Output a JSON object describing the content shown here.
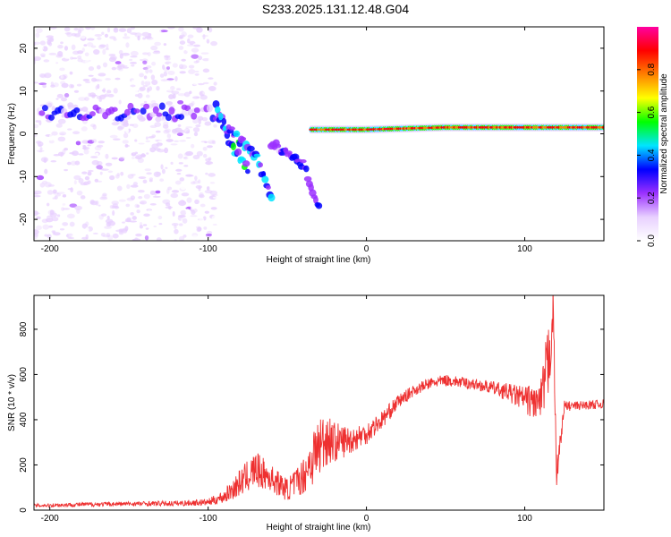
{
  "title": "S233.2025.131.12.48.G04",
  "chart_data": [
    {
      "type": "heatmap",
      "xlabel": "Height of straight line (km)",
      "ylabel": "Frequency (Hz)",
      "xlim": [
        -210,
        150
      ],
      "ylim": [
        -25,
        25
      ],
      "x_ticks": [
        -200,
        -100,
        0,
        100
      ],
      "y_ticks": [
        -20,
        -10,
        0,
        10,
        20
      ],
      "colorbar": {
        "label": "Normalized spectral amplitude",
        "range": [
          0,
          1
        ],
        "ticks": [
          "0.0",
          "0.2",
          "0.4",
          "0.6",
          "0.8"
        ],
        "colors": [
          "#ffffff",
          "#e8d0ff",
          "#9b30ff",
          "#0000ff",
          "#00e5ff",
          "#00ff00",
          "#ffff00",
          "#ff8000",
          "#ff0000",
          "#ff00a0"
        ]
      },
      "features": [
        {
          "desc": "diffuse speckle noise",
          "x_range": [
            -210,
            -95
          ],
          "y_range": [
            -25,
            25
          ],
          "amplitude": 0.1
        },
        {
          "desc": "band near 5 Hz",
          "x_range": [
            -205,
            -90
          ],
          "freq": 5,
          "amplitude": 0.25
        },
        {
          "desc": "descending branch A",
          "points": [
            [
              -95,
              6
            ],
            [
              -85,
              -3
            ],
            [
              -75,
              -8
            ]
          ],
          "amplitude": 0.35
        },
        {
          "desc": "descending branch B",
          "points": [
            [
              -90,
              2
            ],
            [
              -70,
              -5
            ],
            [
              -60,
              -15
            ]
          ],
          "amplitude": 0.35
        },
        {
          "desc": "descending branch C",
          "points": [
            [
              -60,
              -2
            ],
            [
              -40,
              -7
            ],
            [
              -30,
              -17
            ]
          ],
          "amplitude": 0.25
        },
        {
          "desc": "carrier line",
          "points": [
            [
              -35,
              1
            ],
            [
              0,
              1
            ],
            [
              50,
              1.5
            ],
            [
              100,
              1.5
            ],
            [
              150,
              1.5
            ]
          ],
          "amplitude": 0.9
        }
      ]
    },
    {
      "type": "line",
      "xlabel": "Height of straight line (km)",
      "ylabel": "SNR (10 * v/v)",
      "xlim": [
        -210,
        150
      ],
      "ylim": [
        0,
        950
      ],
      "x_ticks": [
        -200,
        -100,
        0,
        100
      ],
      "y_ticks": [
        0,
        200,
        400,
        600,
        800
      ],
      "color": "#ee3030",
      "series": [
        {
          "x": [
            -210,
            -180,
            -150,
            -120,
            -100,
            -90,
            -80,
            -70,
            -60,
            -50,
            -40,
            -35,
            -30,
            -25,
            -20,
            -10,
            0,
            10,
            20,
            30,
            40,
            50,
            60,
            70,
            80,
            90,
            100,
            110,
            115,
            118,
            120,
            125,
            130,
            140,
            150
          ],
          "y": [
            20,
            25,
            28,
            30,
            35,
            60,
            120,
            180,
            140,
            90,
            150,
            220,
            280,
            320,
            300,
            310,
            340,
            400,
            480,
            530,
            560,
            575,
            565,
            555,
            540,
            520,
            490,
            470,
            650,
            900,
            150,
            460,
            460,
            465,
            470
          ],
          "noise": [
            8,
            10,
            10,
            12,
            15,
            30,
            60,
            80,
            60,
            50,
            80,
            120,
            150,
            120,
            90,
            60,
            50,
            40,
            30,
            25,
            25,
            25,
            25,
            25,
            30,
            40,
            60,
            90,
            200,
            100,
            60,
            25,
            20,
            20,
            20
          ]
        }
      ]
    }
  ]
}
